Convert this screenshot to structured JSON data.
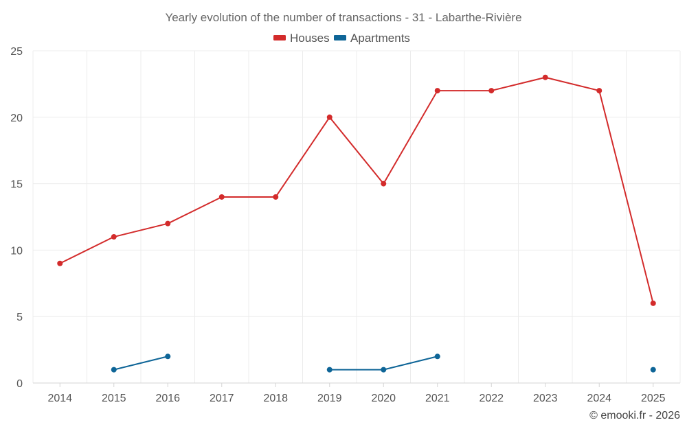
{
  "chart_data": {
    "type": "line",
    "title": "Yearly evolution of the number of transactions - 31 - Labarthe-Rivière",
    "categories": [
      "2014",
      "2015",
      "2016",
      "2017",
      "2018",
      "2019",
      "2020",
      "2021",
      "2022",
      "2023",
      "2024",
      "2025"
    ],
    "ylim": [
      0,
      25
    ],
    "yticks": [
      0,
      5,
      10,
      15,
      20,
      25
    ],
    "xlabel": "",
    "ylabel": "",
    "grid": true,
    "legend_position": "top-center",
    "series": [
      {
        "name": "Houses",
        "color": "#d32b2b",
        "values": [
          9,
          11,
          12,
          14,
          14,
          20,
          15,
          22,
          22,
          23,
          22,
          6
        ]
      },
      {
        "name": "Apartments",
        "color": "#0e6597",
        "values": [
          null,
          1,
          2,
          null,
          null,
          1,
          1,
          2,
          null,
          null,
          null,
          1
        ]
      }
    ]
  },
  "credit": "© emooki.fr - 2026"
}
